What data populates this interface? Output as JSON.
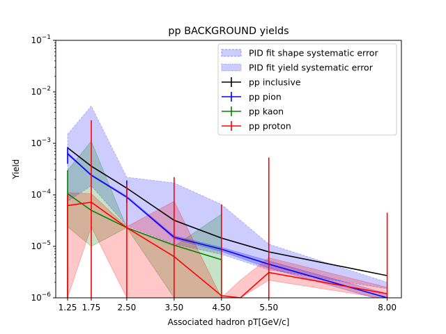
{
  "chart_data": {
    "type": "line",
    "title": "pp BACKGROUND yields",
    "xlabel": "Associated hadron pT[GeV/c]",
    "ylabel": "Yield",
    "yscale": "log",
    "xlim": [
      1.0,
      8.3
    ],
    "ylim": [
      1e-06,
      0.1
    ],
    "x": [
      1.25,
      1.75,
      2.5,
      3.5,
      4.5,
      5.5,
      8.0
    ],
    "xtick_labels": [
      "1.25",
      "1.75",
      "2.50",
      "3.50",
      "4.50",
      "5.50",
      "8.00"
    ],
    "ytick_labels": [
      {
        "base": "10",
        "exp": "−6",
        "value": 1e-06
      },
      {
        "base": "10",
        "exp": "−5",
        "value": 1e-05
      },
      {
        "base": "10",
        "exp": "−4",
        "value": 0.0001
      },
      {
        "base": "10",
        "exp": "−3",
        "value": 0.001
      },
      {
        "base": "10",
        "exp": "−2",
        "value": 0.01
      },
      {
        "base": "10",
        "exp": "−1",
        "value": 0.1
      }
    ],
    "grid": false,
    "legend_position": "top-right",
    "legend": [
      {
        "label": "PID fit shape systematic error",
        "kind": "patch-dashed",
        "color": "#0000ff"
      },
      {
        "label": "PID fit yield systematic error",
        "kind": "patch-dotted",
        "color": "#0000ff"
      },
      {
        "label": "pp inclusive",
        "kind": "line",
        "color": "#000000"
      },
      {
        "label": "pp pion",
        "kind": "line",
        "color": "#0000ff"
      },
      {
        "label": "pp kaon",
        "kind": "line",
        "color": "#008000"
      },
      {
        "label": "pp proton",
        "kind": "line",
        "color": "#ff0000"
      }
    ],
    "series": [
      {
        "name": "pp inclusive",
        "color": "#000000",
        "x": [
          1.25,
          1.75,
          2.5,
          3.5,
          4.5,
          5.5,
          8.0
        ],
        "y": [
          0.00082,
          0.00036,
          0.000135,
          3.2e-05,
          1.45e-05,
          7.8e-06,
          2.7e-06
        ],
        "band_lo": [
          7.5e-05,
          0.00015,
          2.5e-05,
          1.1e-05,
          7e-06,
          3.5e-06,
          1.5e-06
        ],
        "band_hi": [
          0.0015,
          0.0053,
          0.00022,
          0.00017,
          6.5e-05,
          1.1e-05,
          2e-06
        ]
      },
      {
        "name": "pp pion",
        "color": "#0000ff",
        "x": [
          1.25,
          1.75,
          2.5,
          3.5,
          4.5,
          5.5,
          8.0
        ],
        "y": [
          0.00063,
          0.00024,
          9e-05,
          1.5e-05,
          8.8e-06,
          4.5e-06,
          1e-06
        ],
        "err_lo": [
          0.0004,
          null,
          7e-05,
          null,
          null,
          null,
          null
        ],
        "err_hi": [
          0.00085,
          null,
          0.00019,
          null,
          null,
          null,
          null
        ],
        "band_lo": [
          0.0006,
          0.00024,
          9e-05,
          1.4e-05,
          8e-06,
          3.8e-06,
          8.5e-07
        ],
        "band_hi": [
          0.00066,
          0.00025,
          9.5e-05,
          1.6e-05,
          9.5e-06,
          5.2e-06,
          1.2e-06
        ]
      },
      {
        "name": "pp kaon",
        "color": "#008000",
        "x": [
          1.25,
          1.75,
          2.5,
          3.5,
          4.5,
          4.5
        ],
        "y": [
          0.000105,
          5e-05,
          2.3e-05,
          1.05e-05,
          5.5e-06,
          1e-06
        ],
        "err_lo": [
          1e-06,
          null,
          null,
          null,
          null,
          null
        ],
        "err_hi": [
          0.0003,
          null,
          null,
          null,
          null,
          null
        ],
        "band_lo": [
          2.4e-05,
          1e-05,
          2.3e-05,
          1e-06,
          1e-06,
          1e-06
        ],
        "band_hi": [
          0.0003,
          0.0011,
          2.3e-05,
          1e-05,
          4.2e-05,
          4.2e-05
        ]
      },
      {
        "name": "pp proton",
        "color": "#ff0000",
        "x": [
          1.25,
          1.75,
          2.5,
          3.5,
          4.5,
          4.9,
          5.5,
          8.0
        ],
        "y": [
          6.2e-05,
          7.2e-05,
          2.3e-05,
          6.3e-06,
          1.1e-06,
          1e-06,
          3.1e-06,
          1.2e-06
        ],
        "err_lo": [
          1e-06,
          1e-06,
          1e-06,
          1e-06,
          1e-06,
          null,
          1e-06,
          1e-06
        ],
        "err_hi": [
          0.0001,
          0.0028,
          0.00016,
          0.00022,
          6.5e-05,
          null,
          0.00053,
          4.5e-05
        ],
        "band_lo": [
          1e-06,
          2.4e-05,
          1e-06,
          1e-06,
          1e-06,
          1e-06,
          2.2e-06,
          9.5e-07
        ],
        "band_hi": [
          0.00011,
          0.000105,
          2.4e-05,
          7.5e-05,
          1e-06,
          2.2e-06,
          6e-06,
          1.6e-06
        ]
      }
    ]
  }
}
